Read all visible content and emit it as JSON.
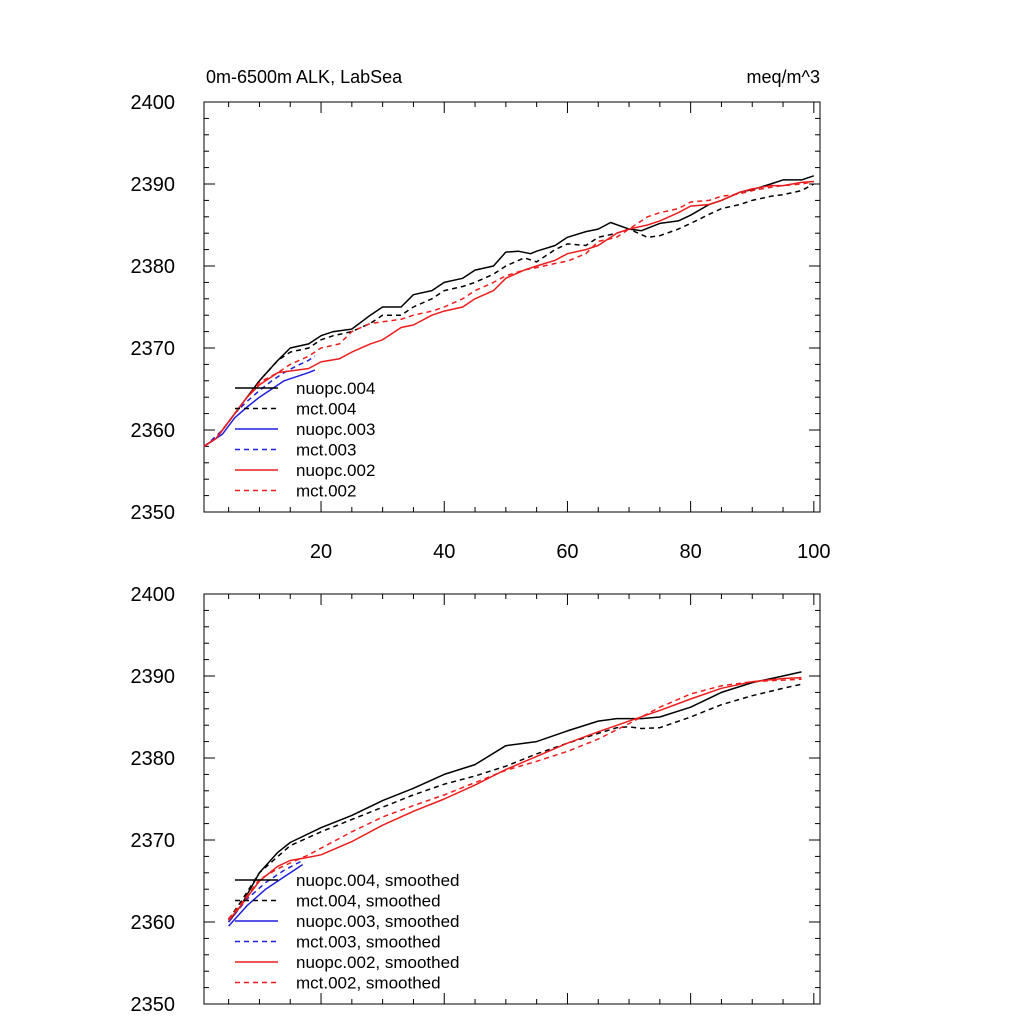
{
  "colors": {
    "black": "#000000",
    "blue": "#1f1fe0",
    "red": "#ee1c1c"
  },
  "chart_data": [
    {
      "type": "line",
      "title_left": "0m-6500m ALK, LabSea",
      "title_right": "meq/m^3",
      "xlabel": "",
      "ylabel": "",
      "xlim": [
        1,
        101
      ],
      "ylim": [
        2350,
        2400
      ],
      "xticks": [
        20,
        40,
        60,
        80,
        100
      ],
      "xtick_labels": [
        "20",
        "40",
        "60",
        "80",
        "100"
      ],
      "yticks": [
        2350,
        2360,
        2370,
        2380,
        2390,
        2400
      ],
      "ytick_labels": [
        "2350",
        "2360",
        "2370",
        "2380",
        "2390",
        "2400"
      ],
      "grid": false,
      "legend_position": "lower-left",
      "series": [
        {
          "name": "nuopc.004",
          "color": "black",
          "dash": false,
          "x": [
            1,
            3,
            5,
            8,
            10,
            13,
            15,
            18,
            20,
            22,
            25,
            28,
            30,
            33,
            35,
            38,
            40,
            43,
            45,
            48,
            50,
            52,
            54,
            55,
            58,
            60,
            63,
            65,
            67,
            70,
            72,
            75,
            78,
            80,
            83,
            85,
            88,
            90,
            93,
            95,
            98,
            100
          ],
          "y": [
            2358,
            2359,
            2361,
            2364,
            2366,
            2368.5,
            2370,
            2370.5,
            2371.5,
            2372,
            2372.3,
            2374,
            2375,
            2375,
            2376.5,
            2377,
            2378,
            2378.5,
            2379.5,
            2380,
            2381.7,
            2381.8,
            2381.5,
            2381.8,
            2382.5,
            2383.5,
            2384.2,
            2384.5,
            2385.3,
            2384.5,
            2384.3,
            2385.2,
            2385.5,
            2386.2,
            2387.5,
            2388,
            2389,
            2389.3,
            2390,
            2390.5,
            2390.5,
            2391
          ]
        },
        {
          "name": "mct.004",
          "color": "black",
          "dash": true,
          "x": [
            1,
            3,
            5,
            8,
            10,
            13,
            15,
            18,
            20,
            22,
            25,
            28,
            30,
            33,
            35,
            38,
            40,
            43,
            45,
            48,
            50,
            53,
            55,
            58,
            60,
            63,
            65,
            68,
            70,
            73,
            75,
            78,
            80,
            83,
            85,
            88,
            90,
            93,
            95,
            98,
            100
          ],
          "y": [
            2358,
            2359,
            2361,
            2364,
            2366,
            2368.5,
            2369.5,
            2370,
            2371,
            2371.5,
            2372,
            2373,
            2374,
            2374,
            2375,
            2376,
            2377,
            2377.5,
            2378,
            2379,
            2380,
            2381,
            2380.5,
            2382,
            2382.7,
            2382.5,
            2383.5,
            2384,
            2384.5,
            2383.5,
            2383.7,
            2384.5,
            2385.2,
            2386.3,
            2387,
            2387.5,
            2388,
            2388.5,
            2388.7,
            2389.2,
            2390
          ]
        },
        {
          "name": "nuopc.003",
          "color": "blue",
          "dash": false,
          "x": [
            1,
            2,
            4,
            6,
            8,
            10,
            12,
            14,
            16,
            18,
            19
          ],
          "y": [
            2358,
            2358.5,
            2359.5,
            2361.5,
            2362.8,
            2364,
            2365,
            2366,
            2366.5,
            2367,
            2367.3
          ]
        },
        {
          "name": "mct.003",
          "color": "blue",
          "dash": true,
          "x": [
            1,
            2,
            4,
            6,
            8,
            10,
            12,
            14,
            16,
            18,
            19
          ],
          "y": [
            2358,
            2358.6,
            2360,
            2362,
            2363.5,
            2364.8,
            2366,
            2367,
            2367.8,
            2368.5,
            2369
          ]
        },
        {
          "name": "nuopc.002",
          "color": "red",
          "dash": false,
          "x": [
            1,
            3,
            5,
            8,
            10,
            13,
            15,
            18,
            20,
            23,
            25,
            28,
            30,
            33,
            35,
            38,
            40,
            43,
            45,
            48,
            50,
            53,
            55,
            58,
            60,
            63,
            65,
            68,
            70,
            73,
            75,
            78,
            80,
            83,
            85,
            88,
            90,
            93,
            95,
            98,
            100
          ],
          "y": [
            2358,
            2359,
            2361,
            2364,
            2365.5,
            2367,
            2367.2,
            2367.5,
            2368.3,
            2368.7,
            2369.5,
            2370.5,
            2371,
            2372.5,
            2372.8,
            2374,
            2374.5,
            2375,
            2376,
            2377,
            2378.5,
            2379.5,
            2380,
            2380.7,
            2381.5,
            2382,
            2382.5,
            2384,
            2384.5,
            2385,
            2385.5,
            2386.5,
            2387.3,
            2387.5,
            2388,
            2389,
            2389.4,
            2389.8,
            2389.8,
            2390.2,
            2390.3
          ]
        },
        {
          "name": "mct.002",
          "color": "red",
          "dash": true,
          "x": [
            1,
            3,
            5,
            8,
            10,
            13,
            15,
            18,
            20,
            23,
            25,
            28,
            30,
            33,
            35,
            38,
            40,
            43,
            45,
            48,
            50,
            53,
            55,
            58,
            60,
            63,
            65,
            68,
            70,
            73,
            75,
            78,
            80,
            83,
            85,
            88,
            90,
            93,
            95,
            98,
            100
          ],
          "y": [
            2358,
            2359,
            2361,
            2364,
            2365.8,
            2367,
            2368,
            2369,
            2370,
            2370.5,
            2372,
            2373,
            2373.2,
            2373.5,
            2374,
            2374.5,
            2375,
            2376,
            2377,
            2378,
            2378.8,
            2379.5,
            2379.8,
            2380.3,
            2380.6,
            2381.5,
            2383,
            2383.5,
            2384.5,
            2386,
            2386.5,
            2387,
            2387.8,
            2388,
            2388.5,
            2388.8,
            2389.2,
            2389.6,
            2389.8,
            2390,
            2390.3
          ]
        }
      ]
    },
    {
      "type": "line",
      "title_left": "",
      "title_right": "",
      "xlabel": "",
      "ylabel": "",
      "xlim": [
        1,
        101
      ],
      "ylim": [
        2350,
        2400
      ],
      "xticks": [
        20,
        40,
        60,
        80,
        100
      ],
      "xtick_labels": [],
      "yticks": [
        2350,
        2360,
        2370,
        2380,
        2390,
        2400
      ],
      "ytick_labels": [
        "2350",
        "2360",
        "2370",
        "2380",
        "2390",
        "2400"
      ],
      "grid": false,
      "legend_position": "lower-left",
      "series": [
        {
          "name": "nuopc.004, smoothed",
          "color": "black",
          "dash": false,
          "x": [
            5,
            7,
            10,
            13,
            15,
            20,
            25,
            30,
            35,
            40,
            45,
            50,
            55,
            60,
            65,
            68,
            70,
            72,
            75,
            80,
            85,
            90,
            95,
            98
          ],
          "y": [
            2360,
            2362,
            2366,
            2368.5,
            2369.7,
            2371.5,
            2373,
            2374.8,
            2376.3,
            2378,
            2379.2,
            2381.5,
            2382,
            2383.3,
            2384.5,
            2384.8,
            2384.8,
            2384.8,
            2385,
            2386.2,
            2388,
            2389.2,
            2390,
            2390.5
          ]
        },
        {
          "name": "mct.004, smoothed",
          "color": "black",
          "dash": true,
          "x": [
            5,
            7,
            10,
            13,
            15,
            20,
            25,
            30,
            35,
            40,
            45,
            50,
            55,
            60,
            65,
            68,
            70,
            72,
            75,
            80,
            85,
            90,
            95,
            98
          ],
          "y": [
            2360.3,
            2362.5,
            2366,
            2368,
            2369.3,
            2371,
            2372.5,
            2374,
            2375.5,
            2376.8,
            2377.8,
            2379,
            2380.5,
            2381.8,
            2383,
            2383.7,
            2383.8,
            2383.6,
            2383.7,
            2385,
            2386.5,
            2387.6,
            2388.5,
            2389
          ]
        },
        {
          "name": "nuopc.003, smoothed",
          "color": "blue",
          "dash": false,
          "x": [
            5,
            8,
            11,
            14,
            17
          ],
          "y": [
            2359.5,
            2362,
            2364,
            2365.5,
            2367
          ]
        },
        {
          "name": "mct.003, smoothed",
          "color": "blue",
          "dash": true,
          "x": [
            5,
            8,
            11,
            14,
            17
          ],
          "y": [
            2360,
            2362.8,
            2364.8,
            2366.3,
            2367.5
          ]
        },
        {
          "name": "nuopc.002, smoothed",
          "color": "red",
          "dash": false,
          "x": [
            5,
            7,
            10,
            13,
            15,
            18,
            20,
            25,
            30,
            35,
            40,
            45,
            50,
            55,
            60,
            65,
            70,
            75,
            80,
            85,
            90,
            95,
            98
          ],
          "y": [
            2360.2,
            2362,
            2365,
            2366.8,
            2367.5,
            2367.9,
            2368.2,
            2369.8,
            2371.8,
            2373.5,
            2375,
            2376.7,
            2378.6,
            2380.2,
            2381.8,
            2383.2,
            2384.5,
            2385.8,
            2387.2,
            2388.5,
            2389.3,
            2389.7,
            2389.8
          ]
        },
        {
          "name": "mct.002, smoothed",
          "color": "red",
          "dash": true,
          "x": [
            5,
            7,
            10,
            13,
            15,
            18,
            20,
            25,
            30,
            35,
            40,
            45,
            50,
            55,
            60,
            65,
            70,
            75,
            80,
            85,
            90,
            95,
            98
          ],
          "y": [
            2360.4,
            2362.2,
            2365.2,
            2366.5,
            2367.2,
            2368.2,
            2369,
            2371,
            2372.8,
            2374.2,
            2375.5,
            2377,
            2378.5,
            2379.6,
            2380.8,
            2382.3,
            2384.2,
            2386.2,
            2387.8,
            2388.8,
            2389.3,
            2389.5,
            2389.6
          ]
        }
      ]
    }
  ]
}
